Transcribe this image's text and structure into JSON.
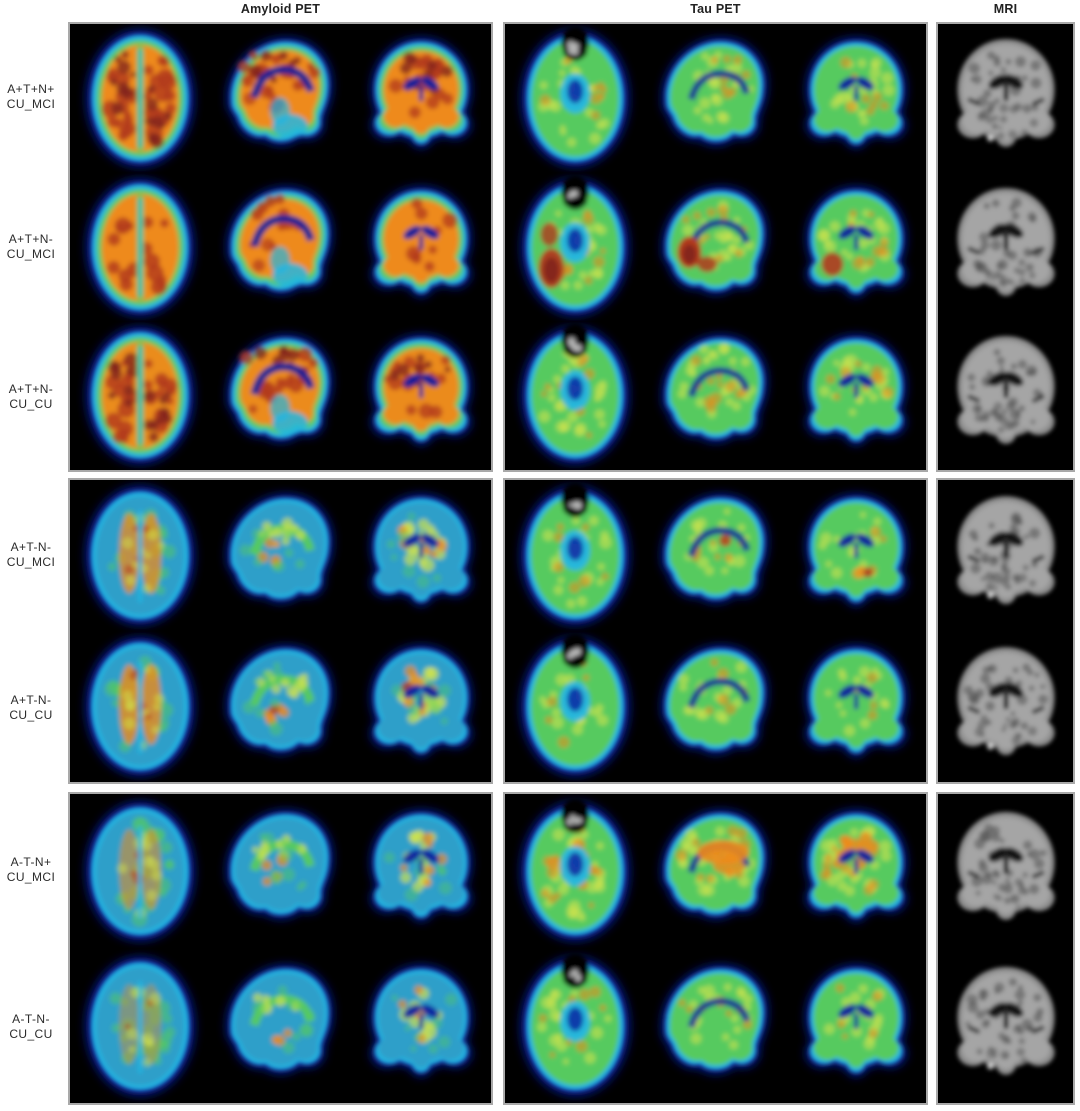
{
  "figure": {
    "columns": [
      {
        "label": "Amyloid PET"
      },
      {
        "label": "Tau PET"
      },
      {
        "label": "MRI"
      }
    ],
    "pet_views": [
      "axial",
      "sagittal",
      "coronal"
    ],
    "mri_view": "coronal",
    "groups": [
      {
        "rows": [
          {
            "biomarker_profile": "A+T+N+",
            "cohort": "CU_MCI",
            "amyloid_burden": "very_high",
            "tau_burden": "mild_mixed"
          },
          {
            "biomarker_profile": "A+T+N-",
            "cohort": "CU_MCI",
            "amyloid_burden": "high",
            "tau_burden": "severe_focal"
          },
          {
            "biomarker_profile": "A+T+N-",
            "cohort": "CU_CU",
            "amyloid_burden": "high_red",
            "tau_burden": "moderate"
          }
        ]
      },
      {
        "rows": [
          {
            "biomarker_profile": "A+T-N-",
            "cohort": "CU_MCI",
            "amyloid_burden": "moderate",
            "tau_burden": "mild_focal"
          },
          {
            "biomarker_profile": "A+T-N-",
            "cohort": "CU_CU",
            "amyloid_burden": "moderate2",
            "tau_burden": "mild"
          }
        ]
      },
      {
        "rows": [
          {
            "biomarker_profile": "A-T-N+",
            "cohort": "CU_MCI",
            "amyloid_burden": "low",
            "tau_burden": "moderate_central"
          },
          {
            "biomarker_profile": "A-T-N-",
            "cohort": "CU_CU",
            "amyloid_burden": "very_low",
            "tau_burden": "mild2"
          }
        ]
      }
    ],
    "colors": {
      "pet_rim": "#0d1f9e",
      "pet_cool": "#23b6e2",
      "pet_teal": "#2f9fc9",
      "pet_green": "#56ca5e",
      "pet_yellow": "#cfe24e",
      "pet_orange": "#ee8a1c",
      "pet_red": "#b23a1f",
      "pet_darkred": "#85271c",
      "skull_gray": "#b9b9b9",
      "mri_gray": "#9a9a9a",
      "mri_light": "#a5a5a5",
      "mri_dark": "#4a4a4a",
      "panel_bg": "#000000",
      "panel_border": "#a9a9a9",
      "page_bg": "#ffffff",
      "text": "#222222"
    }
  }
}
